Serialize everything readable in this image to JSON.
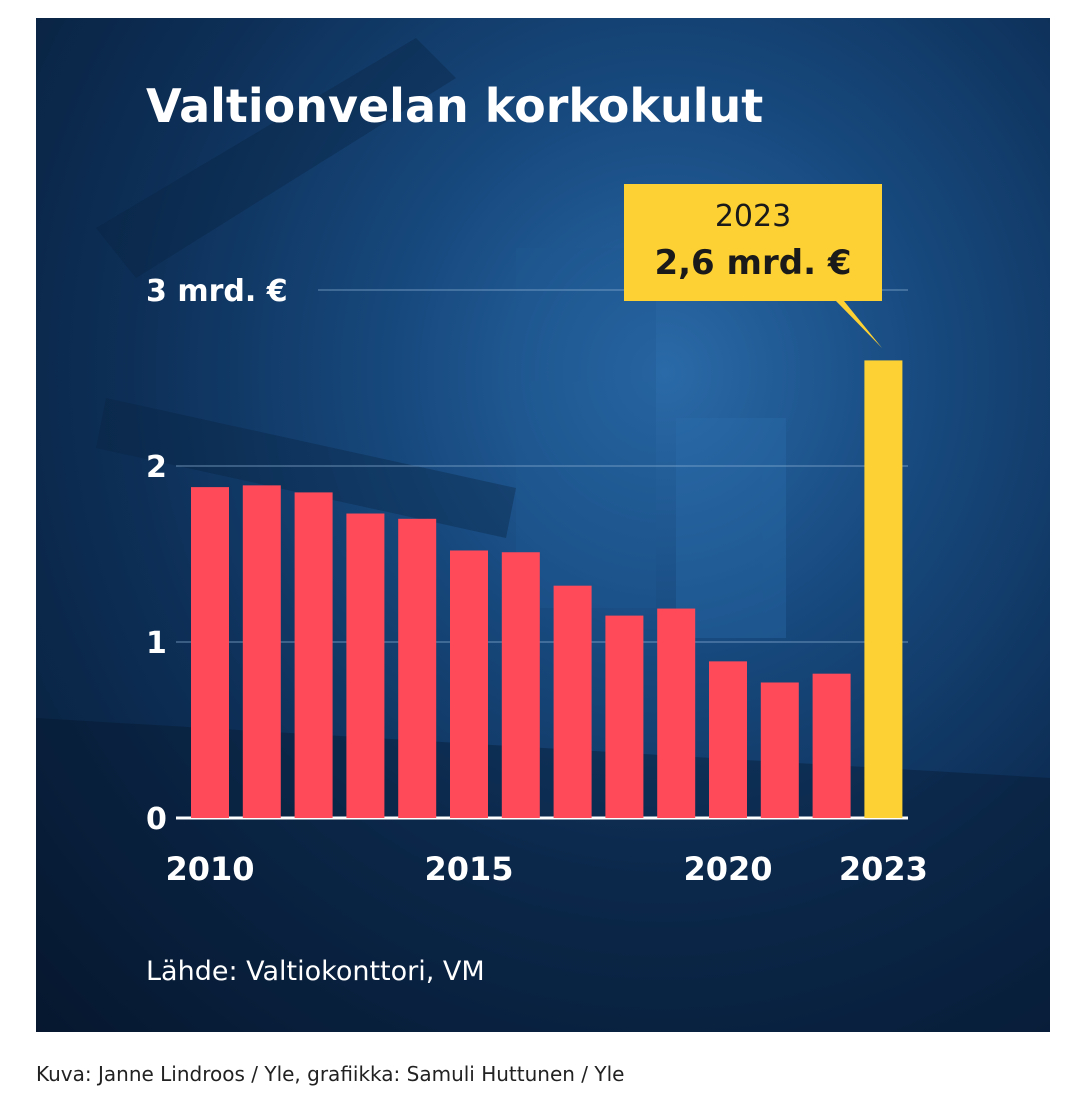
{
  "chart_data": {
    "type": "bar",
    "title": "Valtionvelan korkokulut",
    "categories": [
      "2010",
      "2011",
      "2012",
      "2013",
      "2014",
      "2015",
      "2016",
      "2017",
      "2018",
      "2019",
      "2020",
      "2021",
      "2022",
      "2023"
    ],
    "series": [
      {
        "values": [
          1.88,
          1.89,
          1.85,
          1.73,
          1.7,
          1.52,
          1.51,
          1.32,
          1.15,
          1.19,
          0.89,
          0.77,
          0.82,
          2.6
        ]
      }
    ],
    "highlight_index": 13,
    "ylim": [
      0,
      3
    ],
    "yticks": [
      0,
      1,
      2,
      3
    ],
    "ytick_labels": [
      "0",
      "1",
      "2",
      "3 mrd. €"
    ],
    "xtick_labels": [
      {
        "index": 0,
        "label": "2010"
      },
      {
        "index": 5,
        "label": "2015"
      },
      {
        "index": 10,
        "label": "2020"
      },
      {
        "index": 13,
        "label": "2023"
      }
    ],
    "callout": {
      "year": "2023",
      "value": "2,6 mrd. €"
    },
    "source": "Lähde: Valtiokonttori, VM",
    "colors": {
      "bar": "#ff4a5a",
      "highlight": "#fdd133",
      "axis": "#ffffff",
      "grid": "#8fb3d6",
      "text": "#ffffff"
    }
  },
  "caption": "Kuva: Janne Lindroos / Yle, grafiikka: Samuli Huttunen / Yle"
}
